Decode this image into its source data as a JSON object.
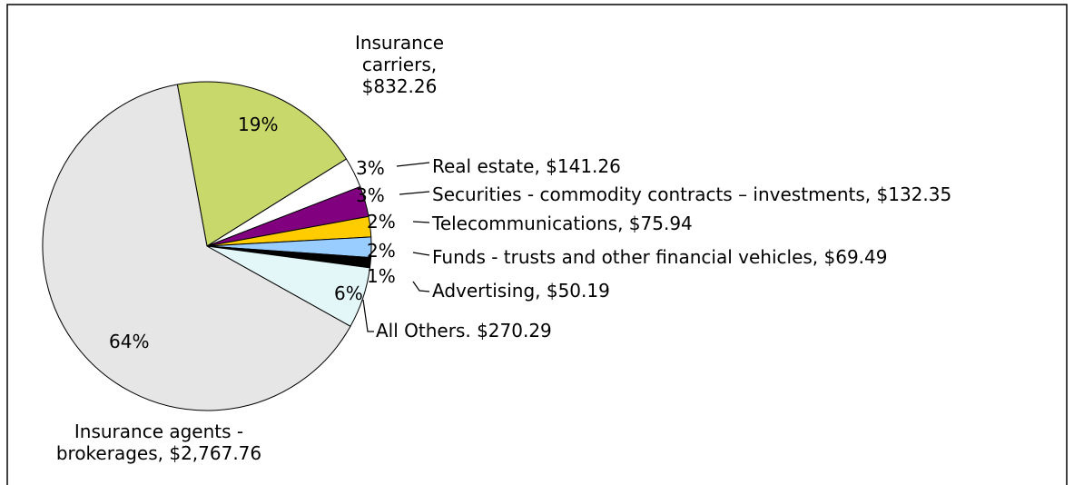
{
  "chart_data": {
    "type": "pie",
    "categories": [
      "Insurance carriers, $832.26",
      "Real estate, $141.26",
      "Securities - commodity contracts – investments, $132.35",
      "Telecommunications, $75.94",
      "Funds - trusts and other financial vehicles, $69.49",
      "Advertising, $50.19",
      "All Others. $270.29",
      "Insurance agents - brokerages, $2,767.76"
    ],
    "values": [
      19,
      3,
      3,
      2,
      2,
      1,
      6,
      64
    ],
    "value_labels": [
      "19%",
      "3%",
      "3%",
      "2%",
      "2%",
      "1%",
      "6%",
      "64%"
    ],
    "colors": [
      "#c8d86a",
      "#ffffff",
      "#800080",
      "#ffcc00",
      "#99ccff",
      "#000000",
      "#e3f7f9",
      "#e6e6e6"
    ]
  }
}
